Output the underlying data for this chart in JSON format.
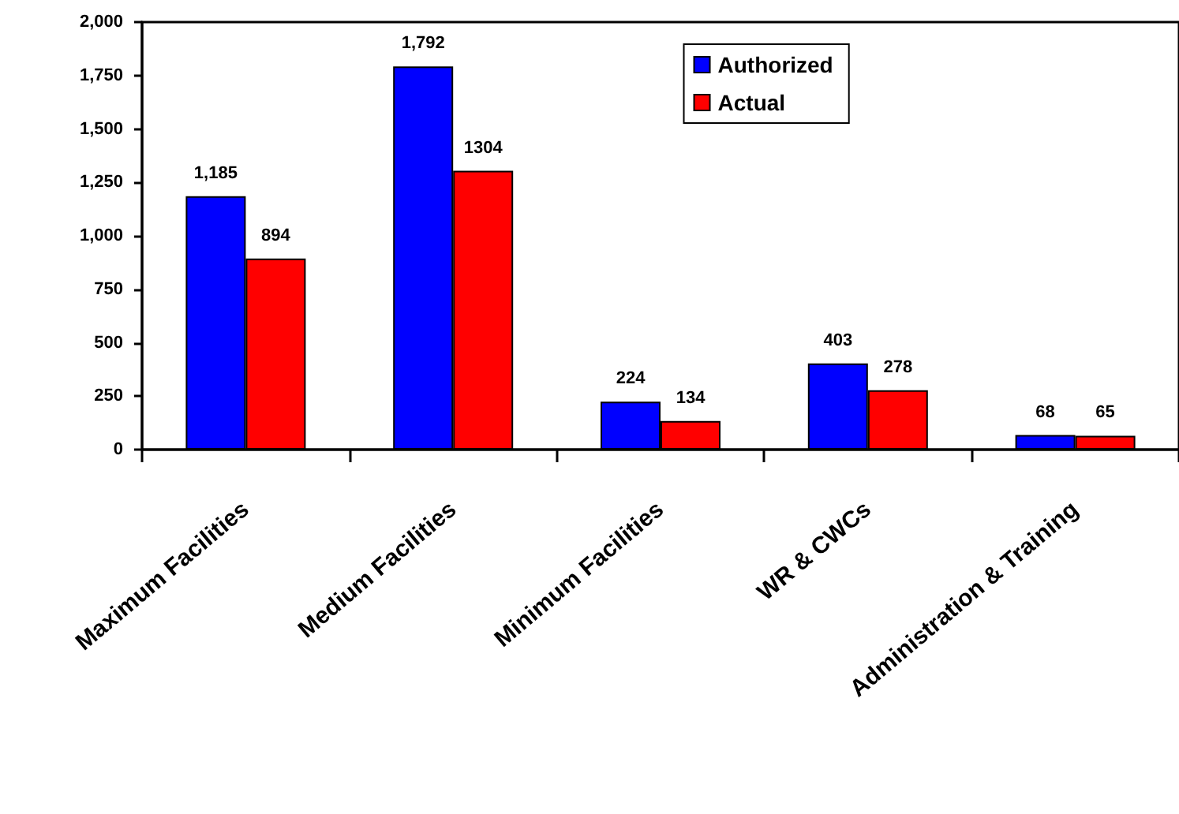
{
  "chart_data": {
    "type": "bar",
    "categories": [
      "Maximum Facilities",
      "Medium Facilities",
      "Minimum Facilities",
      "WR & CWCs",
      "Administration & Training"
    ],
    "series": [
      {
        "name": "Authorized",
        "color": "#0000ff",
        "values": [
          1185,
          1792,
          224,
          403,
          68
        ],
        "value_labels": [
          "1,185",
          "1,792",
          "224",
          "403",
          "68"
        ]
      },
      {
        "name": "Actual",
        "color": "#ff0000",
        "values": [
          894,
          1304,
          134,
          278,
          65
        ],
        "value_labels": [
          "894",
          "1304",
          "134",
          "278",
          "65"
        ]
      }
    ],
    "ylim": [
      0,
      2000
    ],
    "yticks": [
      0,
      250,
      500,
      750,
      {
        "value": 1000,
        "label": "1,000"
      },
      {
        "value": 1250,
        "label": "1,250"
      },
      {
        "value": 1500,
        "label": "1,500"
      },
      {
        "value": 1750,
        "label": "1,750"
      },
      {
        "value": 2000,
        "label": "2,000"
      }
    ],
    "legend": "top"
  }
}
